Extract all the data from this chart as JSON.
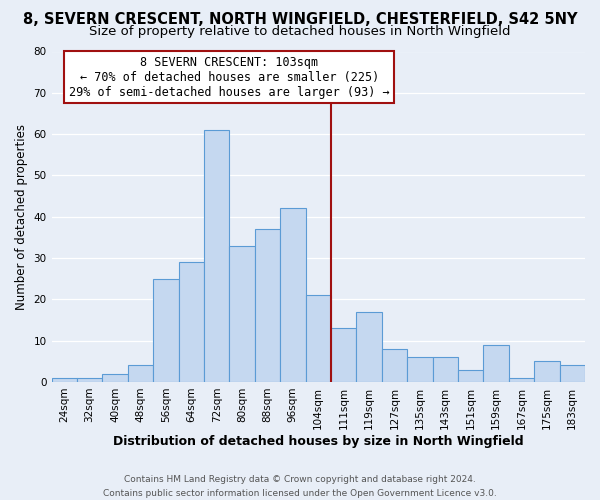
{
  "title": "8, SEVERN CRESCENT, NORTH WINGFIELD, CHESTERFIELD, S42 5NY",
  "subtitle": "Size of property relative to detached houses in North Wingfield",
  "xlabel": "Distribution of detached houses by size in North Wingfield",
  "ylabel": "Number of detached properties",
  "footer_line1": "Contains HM Land Registry data © Crown copyright and database right 2024.",
  "footer_line2": "Contains public sector information licensed under the Open Government Licence v3.0.",
  "bin_labels": [
    "24sqm",
    "32sqm",
    "40sqm",
    "48sqm",
    "56sqm",
    "64sqm",
    "72sqm",
    "80sqm",
    "88sqm",
    "96sqm",
    "104sqm",
    "111sqm",
    "119sqm",
    "127sqm",
    "135sqm",
    "143sqm",
    "151sqm",
    "159sqm",
    "167sqm",
    "175sqm",
    "183sqm"
  ],
  "bar_values": [
    1,
    1,
    2,
    4,
    25,
    29,
    61,
    33,
    37,
    42,
    21,
    13,
    17,
    8,
    6,
    6,
    3,
    9,
    1,
    5,
    4
  ],
  "bar_color": "#c5d8f0",
  "bar_edge_color": "#5b9bd5",
  "vline_x": 10,
  "vline_color": "#a01010",
  "annotation_title": "8 SEVERN CRESCENT: 103sqm",
  "annotation_line2": "← 70% of detached houses are smaller (225)",
  "annotation_line3": "29% of semi-detached houses are larger (93) →",
  "annotation_box_color": "#a01010",
  "ylim": [
    0,
    80
  ],
  "yticks": [
    0,
    10,
    20,
    30,
    40,
    50,
    60,
    70,
    80
  ],
  "background_color": "#e8eef7",
  "grid_color": "#ffffff",
  "title_fontsize": 10.5,
  "subtitle_fontsize": 9.5,
  "ylabel_fontsize": 8.5,
  "xlabel_fontsize": 9,
  "tick_fontsize": 7.5,
  "footer_fontsize": 6.5,
  "annotation_fontsize": 8.5
}
